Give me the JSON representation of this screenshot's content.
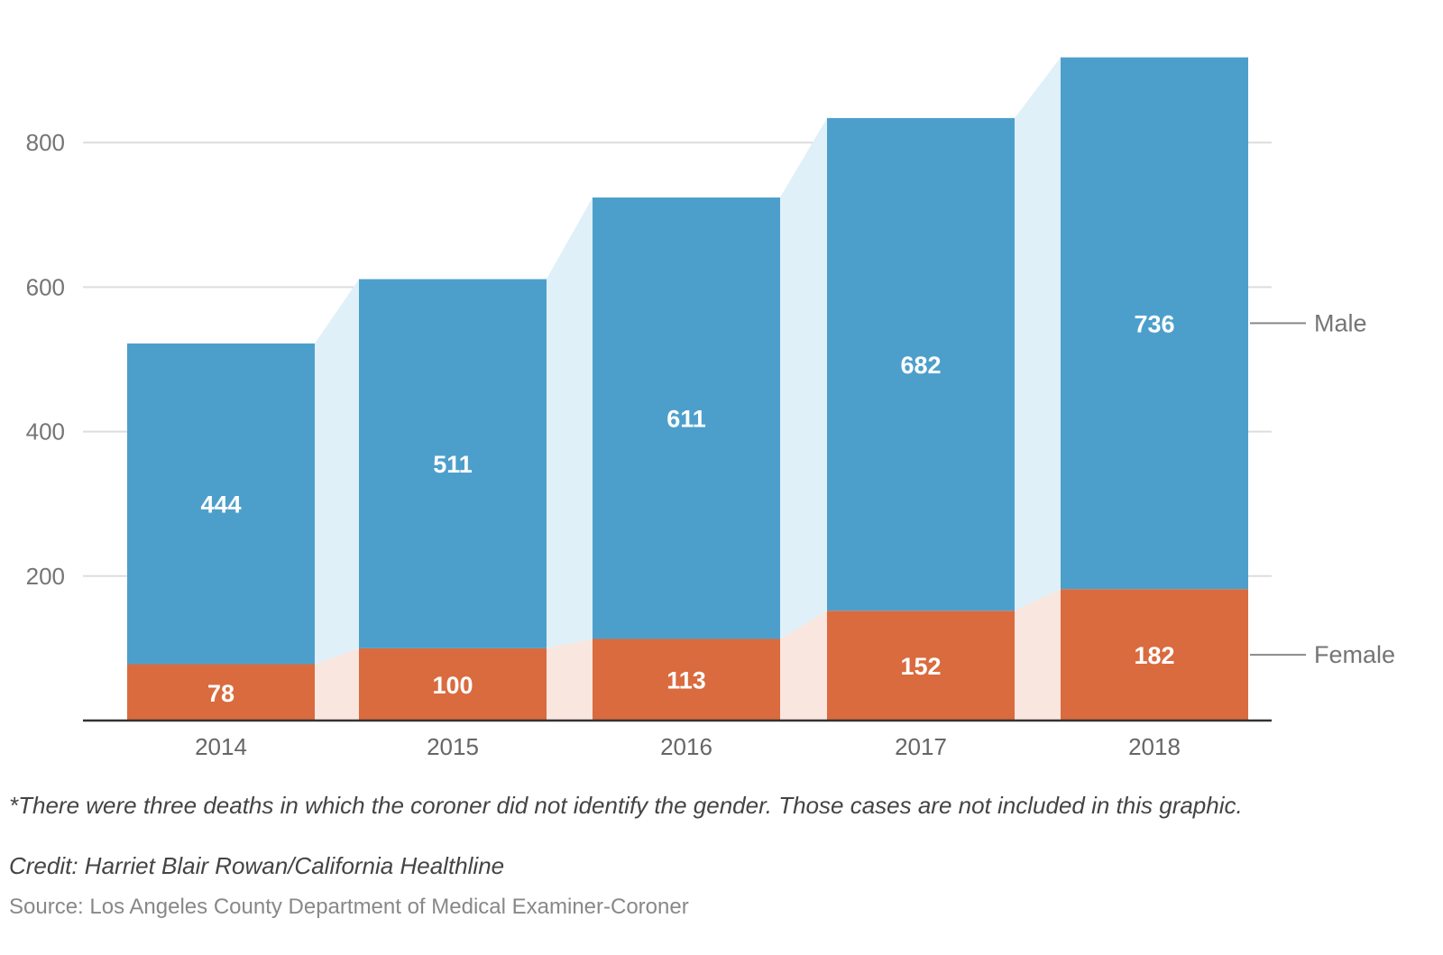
{
  "chart_data": {
    "type": "bar",
    "stacked": true,
    "categories": [
      "2014",
      "2015",
      "2016",
      "2017",
      "2018"
    ],
    "series": [
      {
        "name": "Female",
        "values": [
          78,
          100,
          113,
          152,
          182
        ],
        "color": "#d96b3e",
        "connector_color": "#f9e6df"
      },
      {
        "name": "Male",
        "values": [
          444,
          511,
          611,
          682,
          736
        ],
        "color": "#4d9fcb",
        "connector_color": "#dff0f8"
      }
    ],
    "ylim": [
      0,
      925
    ],
    "yticks": [
      200,
      400,
      600,
      800
    ],
    "grid": true,
    "legend": "inline-right",
    "data_labels": true
  },
  "notes": {
    "footnote": "*There were three deaths in which the coroner did not identify the gender. Those cases are not included in this graphic.",
    "credit": "Credit: Harriet Blair Rowan/California Healthline",
    "source": "Source: Los Angeles County Department of Medical Examiner-Coroner"
  },
  "colors": {
    "grid": "#dddddd",
    "axis": "#333333",
    "legend_line": "#888888"
  }
}
